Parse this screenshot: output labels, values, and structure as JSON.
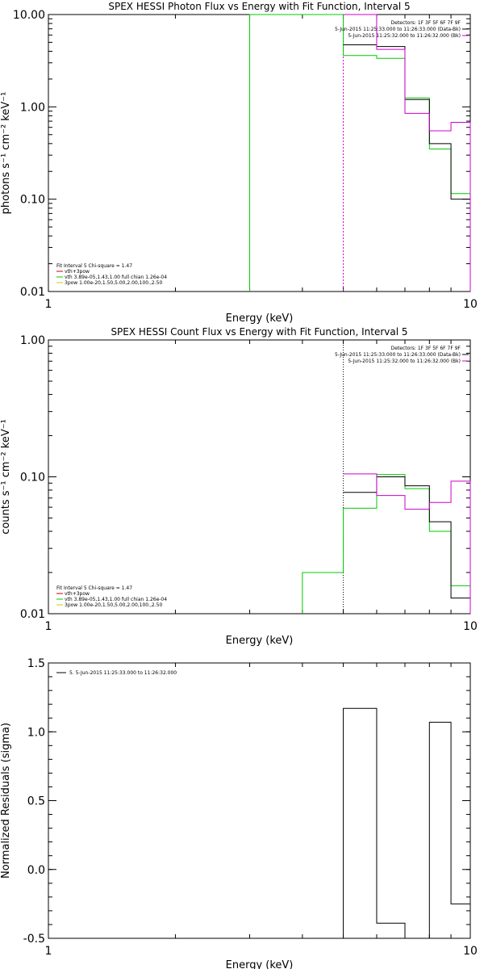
{
  "colors": {
    "obs": "#000000",
    "bk": "#cc00cc",
    "fit": "#00cc00",
    "vth": "#cc0000",
    "pow": "#cccc00"
  },
  "chart_data": [
    {
      "type": "line",
      "title": "SPEX HESSI Photon Flux vs Energy with Fit Function, Interval 5",
      "xlabel": "Energy (keV)",
      "ylabel": "photons s⁻¹ cm⁻² keV⁻¹",
      "x_scale": "log",
      "y_scale": "log",
      "xlim": [
        1,
        10
      ],
      "ylim": [
        0.01,
        10
      ],
      "xticks": [
        {
          "v": 1,
          "label": "1"
        },
        {
          "v": 10,
          "label": "10"
        }
      ],
      "yticks": [
        {
          "v": 10,
          "label": "10.00"
        },
        {
          "v": 1,
          "label": "1.00"
        },
        {
          "v": 0.1,
          "label": "0.10"
        },
        {
          "v": 0.01,
          "label": "0.01"
        }
      ],
      "vlines": [
        {
          "x": 5.0,
          "style": "dashed-magenta"
        }
      ],
      "legend_top_right": {
        "header": "Detectors: 1F 3F 5F 6F 7F 9F",
        "entries": [
          {
            "text": "5-Jun-2015 11:25:33.000 to 11:26:33.000 (Data-Bk)",
            "color": "obs"
          },
          {
            "text": "5-Jun-2015 11:25:32.000 to 11:26:32.000 (Bk)",
            "color": "bk"
          }
        ]
      },
      "legend_bottom_left": {
        "header": "Fit Interval 5   Chi-square = 1.47",
        "entries": [
          {
            "text": "vth+3pow",
            "color": "vth"
          },
          {
            "text": "vth 3.89e-05,1.43,1.00  full chian 1.26e-04",
            "color": "fit"
          },
          {
            "text": "3pow 1.00e-20,1.50,5.00,2.00,100.,2.50",
            "color": "pow"
          }
        ]
      },
      "series": [
        {
          "color": "fit",
          "edges": [
            3.0,
            5.0,
            6.0,
            7.0,
            8.0,
            9.0,
            10.0
          ],
          "values": [
            10.0,
            3.6,
            3.35,
            1.25,
            0.35,
            0.115
          ],
          "start_from_bottom": true
        },
        {
          "color": "obs",
          "edges": [
            5.0,
            6.0,
            7.0,
            8.0,
            9.0,
            10.0
          ],
          "values": [
            4.7,
            4.5,
            1.2,
            0.4,
            0.1
          ]
        },
        {
          "color": "bk",
          "edges": [
            5.0,
            6.0,
            7.0,
            8.0,
            9.0,
            10.0
          ],
          "values": [
            10.0,
            4.2,
            0.85,
            0.55,
            0.68
          ]
        }
      ]
    },
    {
      "type": "line",
      "title": "SPEX HESSI Count Flux vs Energy with Fit Function, Interval 5",
      "xlabel": "Energy (keV)",
      "ylabel": "counts s⁻¹ cm⁻² keV⁻¹",
      "x_scale": "log",
      "y_scale": "log",
      "xlim": [
        1,
        10
      ],
      "ylim": [
        0.01,
        1
      ],
      "xticks": [
        {
          "v": 1,
          "label": "1"
        },
        {
          "v": 10,
          "label": "10"
        }
      ],
      "yticks": [
        {
          "v": 1,
          "label": "1.00"
        },
        {
          "v": 0.1,
          "label": "0.10"
        },
        {
          "v": 0.01,
          "label": "0.01"
        }
      ],
      "vlines": [
        {
          "x": 5.0,
          "style": "dotted-black"
        }
      ],
      "legend_top_right": {
        "header": "Detectors: 1F 3F 5F 6F 7F 9F",
        "entries": [
          {
            "text": "5-Jun-2015 11:25:33.000 to 11:26:33.000 (Data-Bk)",
            "color": "obs"
          },
          {
            "text": "5-Jun-2015 11:25:32.000 to 11:26:32.000 (Bk)",
            "color": "bk"
          }
        ]
      },
      "legend_bottom_left": {
        "header": "Fit Interval 5   Chi-square = 1.47",
        "entries": [
          {
            "text": "vth+3pow",
            "color": "vth"
          },
          {
            "text": "vth 3.89e-05,1.43,1.00  full chian 1.26e-04",
            "color": "fit"
          },
          {
            "text": "3pow 1.00e-20,1.50,5.00,2.00,100.,2.50",
            "color": "pow"
          }
        ]
      },
      "series": [
        {
          "color": "fit",
          "edges": [
            4.0,
            5.0,
            6.0,
            7.0,
            8.0,
            9.0,
            10.0
          ],
          "values": [
            0.02,
            0.059,
            0.104,
            0.082,
            0.04,
            0.016
          ],
          "start_from_bottom": true
        },
        {
          "color": "obs",
          "edges": [
            5.0,
            6.0,
            7.0,
            8.0,
            9.0,
            10.0
          ],
          "values": [
            0.077,
            0.1,
            0.086,
            0.047,
            0.013
          ]
        },
        {
          "color": "bk",
          "edges": [
            5.0,
            6.0,
            7.0,
            8.0,
            9.0,
            10.0
          ],
          "values": [
            0.105,
            0.073,
            0.058,
            0.065,
            0.093
          ]
        }
      ]
    },
    {
      "type": "line",
      "title": "",
      "xlabel": "Energy (keV)",
      "ylabel": "Normalized Residuals (sigma)",
      "x_scale": "log",
      "y_scale": "linear",
      "xlim": [
        1,
        10
      ],
      "ylim": [
        -0.5,
        1.5
      ],
      "xticks": [
        {
          "v": 1,
          "label": "1"
        },
        {
          "v": 10,
          "label": "10"
        }
      ],
      "yticks": [
        {
          "v": 1.5,
          "label": "1.5"
        },
        {
          "v": 1.0,
          "label": "1.0"
        },
        {
          "v": 0.5,
          "label": "0.5"
        },
        {
          "v": 0.0,
          "label": "0.0"
        },
        {
          "v": -0.5,
          "label": "-0.5"
        }
      ],
      "legend_top_left": {
        "entries": [
          {
            "text": "5.  5-Jun-2015 11:25:33.000 to 11:26:32.000",
            "color": "obs"
          }
        ]
      },
      "series": [
        {
          "color": "obs",
          "edges": [
            5.0,
            6.0,
            7.0,
            8.0,
            9.0,
            10.0
          ],
          "values": [
            1.17,
            -0.39,
            -0.51,
            1.07,
            -0.25
          ],
          "start_from_bottom": true
        }
      ]
    }
  ]
}
